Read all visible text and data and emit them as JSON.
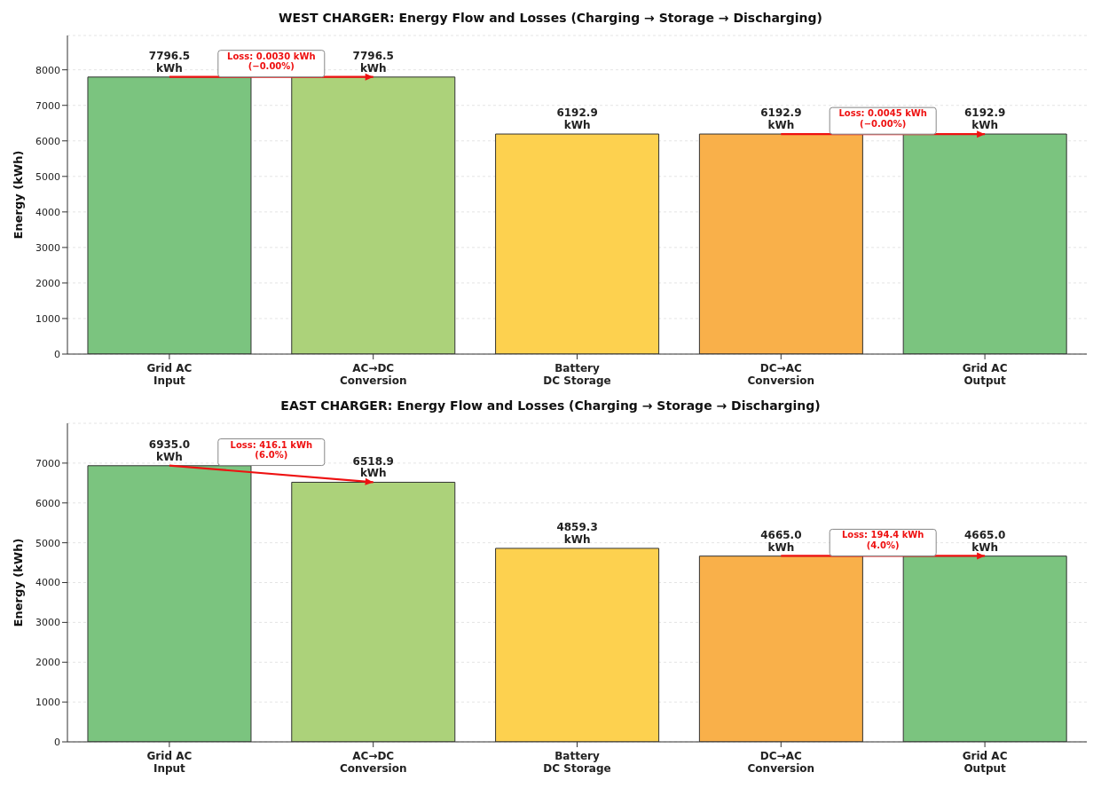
{
  "chart_data": [
    {
      "type": "bar",
      "title": "WEST CHARGER: Energy Flow and Losses (Charging → Storage → Discharging)",
      "ylabel": "Energy (kWh)",
      "categories": [
        "Grid AC\nInput",
        "AC→DC\nConversion",
        "Battery\nDC Storage",
        "DC→AC\nConversion",
        "Grid AC\nOutput"
      ],
      "series": [
        {
          "values": [
            7796.5,
            7796.5,
            6192.9,
            6192.9,
            6192.9
          ],
          "value_labels": [
            "7796.5\nkWh",
            "7796.5\nkWh",
            "6192.9\nkWh",
            "6192.9\nkWh",
            "6192.9\nkWh"
          ],
          "colors": [
            "#7bc47f",
            "#acd27a",
            "#fdd14f",
            "#f9b04a",
            "#7bc47f"
          ]
        },
        {
          "type": "line",
          "color": "#ee1111",
          "x": [
            "Grid AC\nInput",
            "AC→DC\nConversion"
          ],
          "values": [
            7800,
            7800
          ]
        },
        {
          "type": "line",
          "color": "#ee1111",
          "x": [
            "DC→AC\nConversion",
            "Grid AC\nOutput"
          ],
          "values": [
            6190,
            6190
          ]
        }
      ],
      "ylim": [
        0,
        8966
      ],
      "yticks": [
        0,
        1000,
        2000,
        3000,
        4000,
        5000,
        6000,
        7000,
        8000
      ],
      "grid": "y",
      "annotations": [
        "Loss: 0.0030 kWh\n(−0.00%)",
        "Loss: 0.0045 kWh\n(−0.00%)"
      ]
    },
    {
      "type": "bar",
      "title": "EAST CHARGER: Energy Flow and Losses (Charging → Storage → Discharging)",
      "ylabel": "Energy (kWh)",
      "categories": [
        "Grid AC\nInput",
        "AC→DC\nConversion",
        "Battery\nDC Storage",
        "DC→AC\nConversion",
        "Grid AC\nOutput"
      ],
      "series": [
        {
          "values": [
            6935.0,
            6518.9,
            4859.3,
            4665.0,
            4665.0
          ],
          "value_labels": [
            "6935.0\nkWh",
            "6518.9\nkWh",
            "4859.3\nkWh",
            "4665.0\nkWh",
            "4665.0\nkWh"
          ],
          "colors": [
            "#7bc47f",
            "#acd27a",
            "#fdd14f",
            "#f9b04a",
            "#7bc47f"
          ]
        },
        {
          "type": "line",
          "color": "#ee1111",
          "x": [
            "Grid AC\nInput",
            "AC→DC\nConversion"
          ],
          "values": [
            6940,
            6520
          ]
        },
        {
          "type": "line",
          "color": "#ee1111",
          "x": [
            "DC→AC\nConversion",
            "Grid AC\nOutput"
          ],
          "values": [
            4670,
            4670
          ]
        }
      ],
      "ylim": [
        0,
        8000
      ],
      "yticks": [
        0,
        1000,
        2000,
        3000,
        4000,
        5000,
        6000,
        7000
      ],
      "grid": "y",
      "annotations": [
        "Loss: 416.1 kWh\n(6.0%)",
        "Loss: 194.4 kWh\n(4.0%)"
      ]
    }
  ]
}
